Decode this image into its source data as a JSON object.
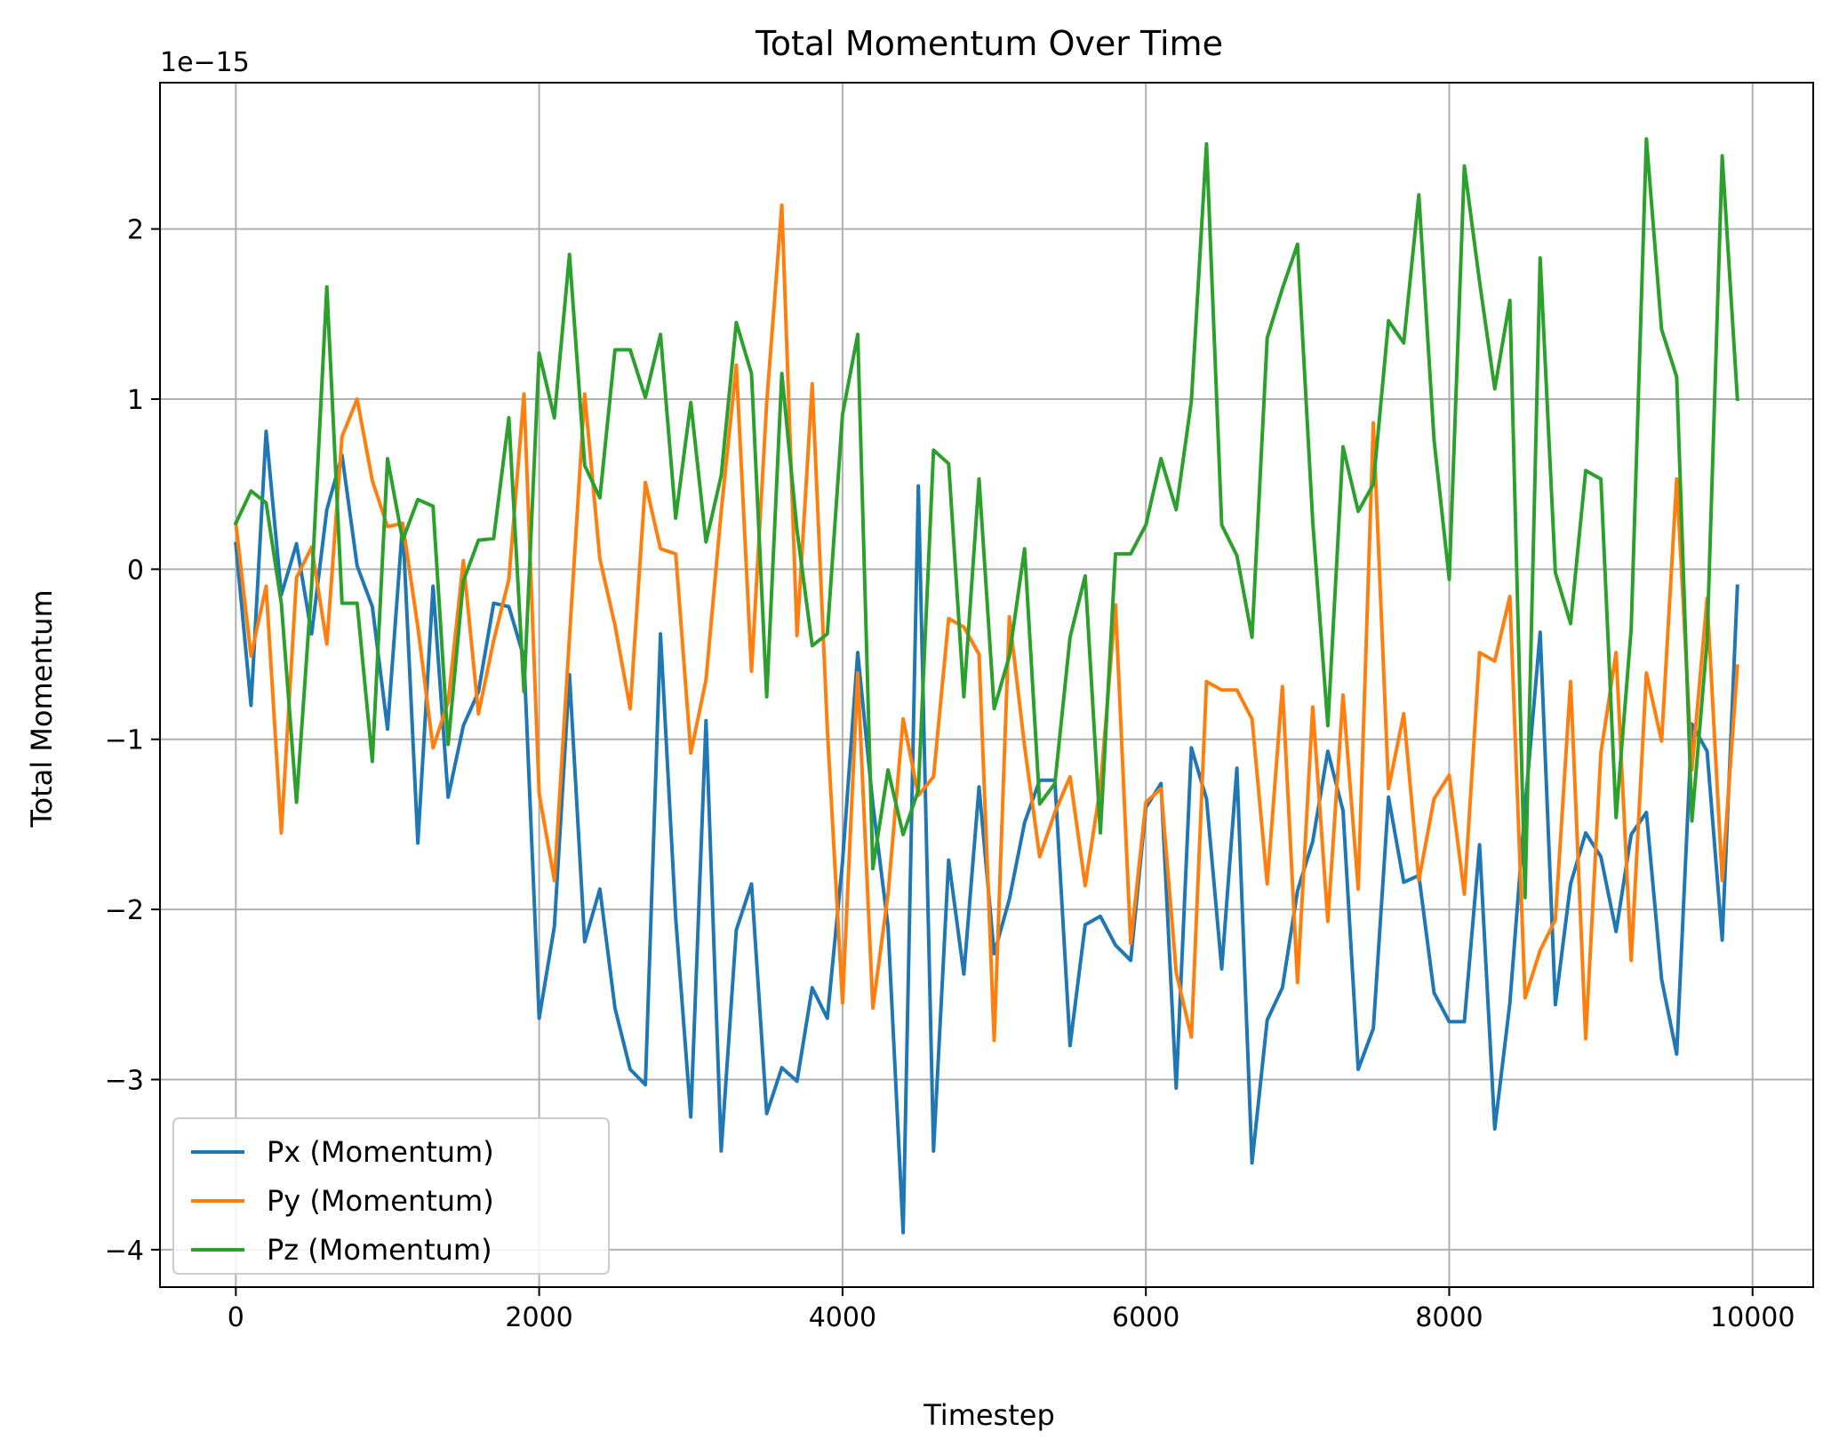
{
  "chart_data": {
    "type": "line",
    "title": "Total Momentum Over Time",
    "xlabel": "Timestep",
    "ylabel": "Total Momentum",
    "y_offset_label": "1e−15",
    "xlim": [
      -500,
      10400
    ],
    "ylim": [
      -4.22,
      2.86
    ],
    "xticks": [
      0,
      2000,
      4000,
      6000,
      8000,
      10000
    ],
    "xtick_labels": [
      "0",
      "2000",
      "4000",
      "6000",
      "8000",
      "10000"
    ],
    "yticks": [
      -4,
      -3,
      -2,
      -1,
      0,
      1,
      2
    ],
    "ytick_labels": [
      "−4",
      "−3",
      "−2",
      "−1",
      "0",
      "1",
      "2"
    ],
    "grid": true,
    "legend_position": "lower-left",
    "x": [
      0,
      100,
      200,
      300,
      400,
      500,
      600,
      700,
      800,
      900,
      1000,
      1100,
      1200,
      1300,
      1400,
      1500,
      1600,
      1700,
      1800,
      1900,
      2000,
      2100,
      2200,
      2300,
      2400,
      2500,
      2600,
      2700,
      2800,
      2900,
      3000,
      3100,
      3200,
      3300,
      3400,
      3500,
      3600,
      3700,
      3800,
      3900,
      4000,
      4100,
      4200,
      4300,
      4400,
      4500,
      4600,
      4700,
      4800,
      4900,
      5000,
      5100,
      5200,
      5300,
      5400,
      5500,
      5600,
      5700,
      5800,
      5900,
      6000,
      6100,
      6200,
      6300,
      6400,
      6500,
      6600,
      6700,
      6800,
      6900,
      7000,
      7100,
      7200,
      7300,
      7400,
      7500,
      7600,
      7700,
      7800,
      7900,
      8000,
      8100,
      8200,
      8300,
      8400,
      8500,
      8600,
      8700,
      8800,
      8900,
      9000,
      9100,
      9200,
      9300,
      9400,
      9500,
      9600,
      9700,
      9800,
      9900
    ],
    "series": [
      {
        "name": "Px (Momentum)",
        "color": "#1f77b4",
        "values": [
          0.15,
          -0.8,
          0.81,
          -0.15,
          0.15,
          -0.38,
          0.35,
          0.67,
          0.02,
          -0.22,
          -0.94,
          0.27,
          -1.61,
          -0.1,
          -1.34,
          -0.92,
          -0.72,
          -0.2,
          -0.22,
          -0.52,
          -2.64,
          -2.1,
          -0.62,
          -2.19,
          -1.88,
          -2.58,
          -2.94,
          -3.03,
          -0.38,
          -2.05,
          -3.22,
          -0.89,
          -3.42,
          -2.12,
          -1.85,
          -3.2,
          -2.93,
          -3.01,
          -2.46,
          -2.64,
          -1.72,
          -0.49,
          -1.38,
          -2.1,
          -3.9,
          0.49,
          -3.42,
          -1.71,
          -2.38,
          -1.28,
          -2.26,
          -1.94,
          -1.49,
          -1.24,
          -1.24,
          -2.8,
          -2.09,
          -2.04,
          -2.21,
          -2.3,
          -1.4,
          -1.26,
          -3.05,
          -1.05,
          -1.35,
          -2.35,
          -1.17,
          -3.49,
          -2.65,
          -2.46,
          -1.89,
          -1.6,
          -1.07,
          -1.42,
          -2.94,
          -2.7,
          -1.34,
          -1.84,
          -1.8,
          -2.49,
          -2.66,
          -2.66,
          -1.62,
          -3.29,
          -2.55,
          -1.4,
          -0.37,
          -2.56,
          -1.85,
          -1.55,
          -1.69,
          -2.13,
          -1.56,
          -1.43,
          -2.41,
          -2.85,
          -0.91,
          -1.07,
          -2.18,
          -0.1
        ]
      },
      {
        "name": "Py (Momentum)",
        "color": "#ff7f0e",
        "values": [
          0.27,
          -0.51,
          -0.1,
          -1.55,
          -0.05,
          0.13,
          -0.44,
          0.78,
          1.0,
          0.52,
          0.25,
          0.27,
          -0.34,
          -1.05,
          -0.78,
          0.05,
          -0.85,
          -0.42,
          -0.06,
          1.03,
          -1.32,
          -1.83,
          -0.4,
          1.03,
          0.06,
          -0.33,
          -0.82,
          0.51,
          0.12,
          0.09,
          -1.08,
          -0.65,
          0.34,
          1.2,
          -0.6,
          0.98,
          2.14,
          -0.39,
          1.09,
          -0.94,
          -2.55,
          -0.61,
          -2.58,
          -1.91,
          -0.88,
          -1.33,
          -1.22,
          -0.29,
          -0.34,
          -0.5,
          -2.77,
          -0.28,
          -1.04,
          -1.69,
          -1.43,
          -1.22,
          -1.86,
          -1.28,
          -0.21,
          -2.2,
          -1.37,
          -1.29,
          -2.37,
          -2.75,
          -0.66,
          -0.71,
          -0.71,
          -0.88,
          -1.85,
          -0.69,
          -2.43,
          -0.81,
          -2.07,
          -0.74,
          -1.88,
          0.86,
          -1.29,
          -0.85,
          -1.83,
          -1.35,
          -1.21,
          -1.91,
          -0.49,
          -0.54,
          -0.16,
          -2.52,
          -2.24,
          -2.06,
          -0.66,
          -2.76,
          -1.08,
          -0.49,
          -2.3,
          -0.61,
          -1.01,
          0.53,
          -1.18,
          -0.17,
          -1.83,
          -0.57
        ]
      },
      {
        "name": "Pz (Momentum)",
        "color": "#2ca02c",
        "values": [
          0.27,
          0.46,
          0.39,
          -0.2,
          -1.37,
          -0.1,
          1.66,
          -0.2,
          -0.2,
          -1.13,
          0.65,
          0.17,
          0.41,
          0.37,
          -1.03,
          -0.07,
          0.17,
          0.18,
          0.89,
          -0.72,
          1.27,
          0.89,
          1.85,
          0.61,
          0.42,
          1.29,
          1.29,
          1.01,
          1.38,
          0.3,
          0.98,
          0.16,
          0.55,
          1.45,
          1.15,
          -0.75,
          1.15,
          0.23,
          -0.45,
          -0.38,
          0.91,
          1.38,
          -1.76,
          -1.18,
          -1.56,
          -1.3,
          0.7,
          0.62,
          -0.75,
          0.53,
          -0.82,
          -0.51,
          0.12,
          -1.38,
          -1.26,
          -0.4,
          -0.04,
          -1.55,
          0.09,
          0.09,
          0.26,
          0.65,
          0.35,
          0.99,
          2.5,
          0.26,
          0.08,
          -0.4,
          1.36,
          1.65,
          1.91,
          0.28,
          -0.92,
          0.72,
          0.34,
          0.5,
          1.46,
          1.33,
          2.2,
          0.76,
          -0.06,
          2.37,
          1.69,
          1.06,
          1.58,
          -1.93,
          1.83,
          -0.02,
          -0.32,
          0.58,
          0.53,
          -1.46,
          -0.35,
          2.53,
          1.41,
          1.13,
          -1.48,
          -0.42,
          2.43,
          1.0
        ]
      }
    ]
  }
}
